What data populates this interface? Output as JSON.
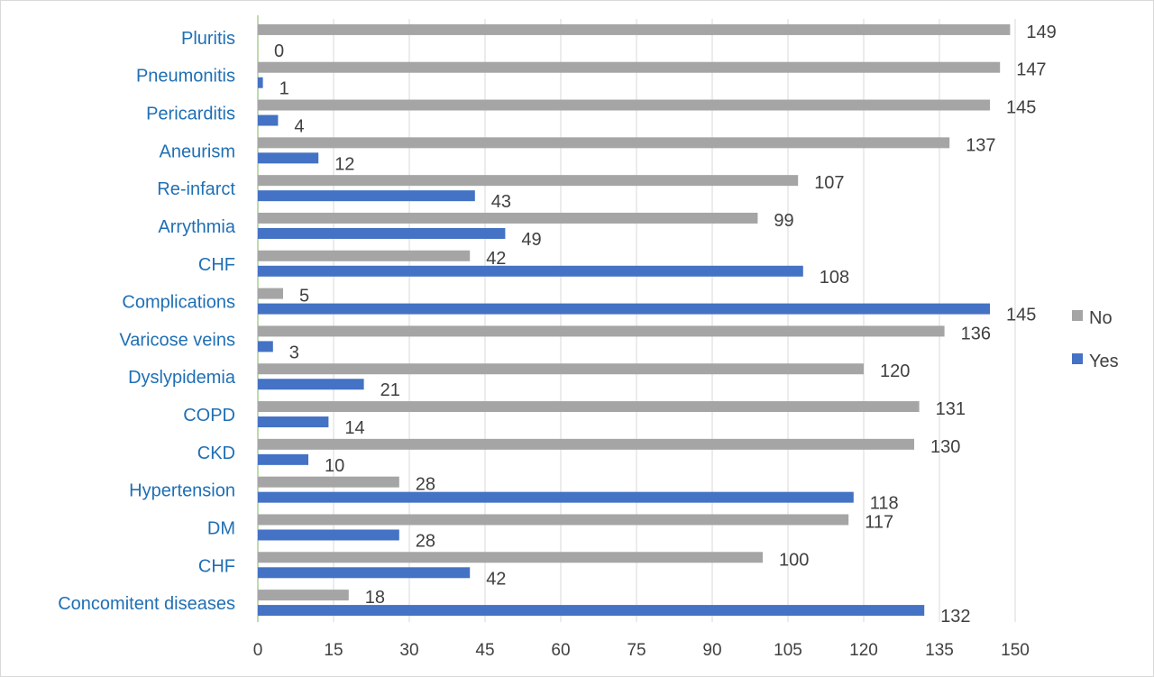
{
  "chart_data": {
    "type": "bar",
    "orientation": "horizontal",
    "categories": [
      "Pluritis",
      "Pneumonitis",
      "Pericarditis",
      "Aneurism",
      "Re-infarct",
      "Arrythmia",
      "CHF",
      "Complications",
      "Varicose veins",
      "Dyslypidemia",
      "COPD",
      "CKD",
      "Hypertension",
      "DM",
      "CHF",
      "Concomitent diseases"
    ],
    "series": [
      {
        "name": "No",
        "color": "#a5a5a5",
        "values": [
          149,
          147,
          145,
          137,
          107,
          99,
          42,
          5,
          136,
          120,
          131,
          130,
          28,
          117,
          100,
          18
        ]
      },
      {
        "name": "Yes",
        "color": "#4472c4",
        "values": [
          0,
          1,
          4,
          12,
          43,
          49,
          108,
          145,
          3,
          21,
          14,
          10,
          118,
          28,
          42,
          132
        ]
      }
    ],
    "title": "",
    "xlabel": "",
    "ylabel": "",
    "xlim": [
      0,
      150
    ],
    "xticks": [
      "0",
      "15",
      "30",
      "45",
      "60",
      "75",
      "90",
      "105",
      "120",
      "135",
      "150"
    ],
    "grid": true,
    "legend_position": "right",
    "legend_order": [
      "No",
      "Yes"
    ]
  }
}
